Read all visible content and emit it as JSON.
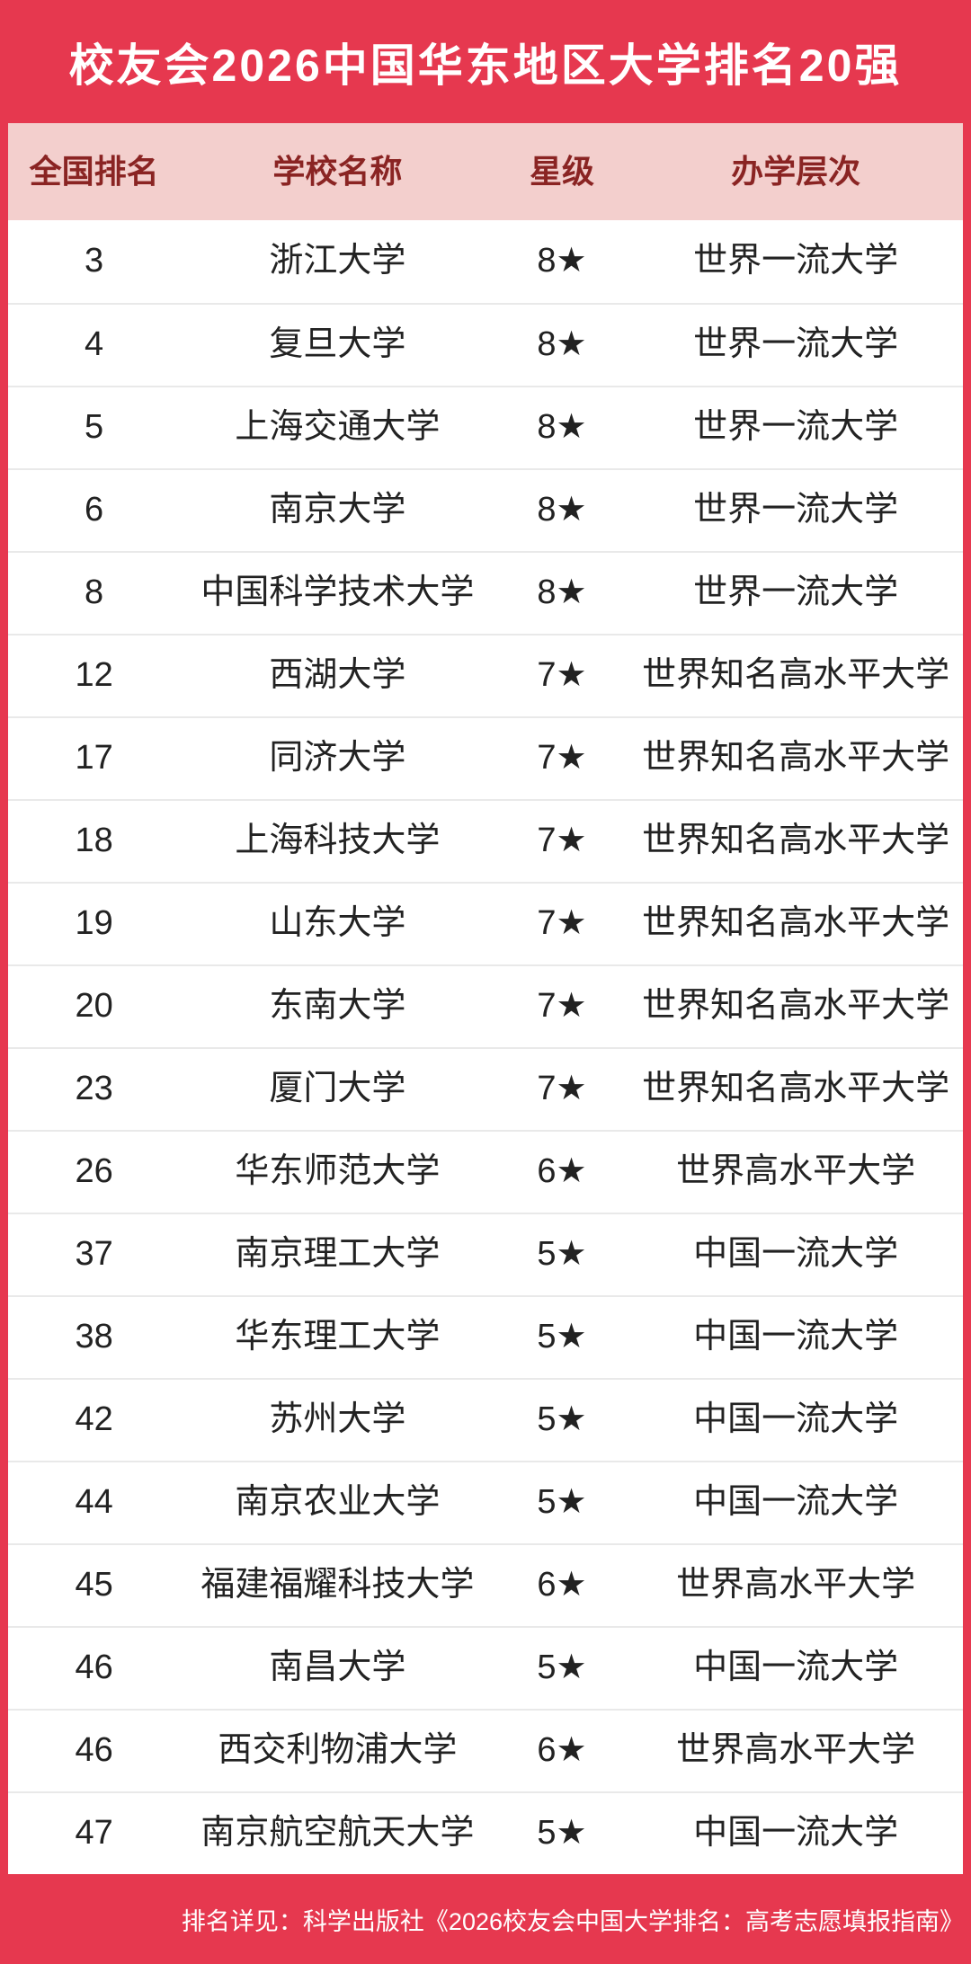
{
  "title": "校友会2026中国华东地区大学排名20强",
  "colors": {
    "banner_red": "#E6384F",
    "header_pink": "#F3CFCD",
    "header_text_maroon": "#8A2423",
    "row_text": "#222222",
    "divider": "#E9E9E9",
    "banner_text": "#FFFFFF"
  },
  "table": {
    "columns": [
      "全国排名",
      "学校名称",
      "星级",
      "办学层次"
    ],
    "rows": [
      {
        "rank": "3",
        "school": "浙江大学",
        "stars": "8★",
        "tier": "世界一流大学"
      },
      {
        "rank": "4",
        "school": "复旦大学",
        "stars": "8★",
        "tier": "世界一流大学"
      },
      {
        "rank": "5",
        "school": "上海交通大学",
        "stars": "8★",
        "tier": "世界一流大学"
      },
      {
        "rank": "6",
        "school": "南京大学",
        "stars": "8★",
        "tier": "世界一流大学"
      },
      {
        "rank": "8",
        "school": "中国科学技术大学",
        "stars": "8★",
        "tier": "世界一流大学"
      },
      {
        "rank": "12",
        "school": "西湖大学",
        "stars": "7★",
        "tier": "世界知名高水平大学"
      },
      {
        "rank": "17",
        "school": "同济大学",
        "stars": "7★",
        "tier": "世界知名高水平大学"
      },
      {
        "rank": "18",
        "school": "上海科技大学",
        "stars": "7★",
        "tier": "世界知名高水平大学"
      },
      {
        "rank": "19",
        "school": "山东大学",
        "stars": "7★",
        "tier": "世界知名高水平大学"
      },
      {
        "rank": "20",
        "school": "东南大学",
        "stars": "7★",
        "tier": "世界知名高水平大学"
      },
      {
        "rank": "23",
        "school": "厦门大学",
        "stars": "7★",
        "tier": "世界知名高水平大学"
      },
      {
        "rank": "26",
        "school": "华东师范大学",
        "stars": "6★",
        "tier": "世界高水平大学"
      },
      {
        "rank": "37",
        "school": "南京理工大学",
        "stars": "5★",
        "tier": "中国一流大学"
      },
      {
        "rank": "38",
        "school": "华东理工大学",
        "stars": "5★",
        "tier": "中国一流大学"
      },
      {
        "rank": "42",
        "school": "苏州大学",
        "stars": "5★",
        "tier": "中国一流大学"
      },
      {
        "rank": "44",
        "school": "南京农业大学",
        "stars": "5★",
        "tier": "中国一流大学"
      },
      {
        "rank": "45",
        "school": "福建福耀科技大学",
        "stars": "6★",
        "tier": "世界高水平大学"
      },
      {
        "rank": "46",
        "school": "南昌大学",
        "stars": "5★",
        "tier": "中国一流大学"
      },
      {
        "rank": "46",
        "school": "西交利物浦大学",
        "stars": "6★",
        "tier": "世界高水平大学"
      },
      {
        "rank": "47",
        "school": "南京航空航天大学",
        "stars": "5★",
        "tier": "中国一流大学"
      }
    ]
  },
  "footer": {
    "note": "排名详见：科学出版社《2026校友会中国大学排名：高考志愿填报指南》"
  }
}
